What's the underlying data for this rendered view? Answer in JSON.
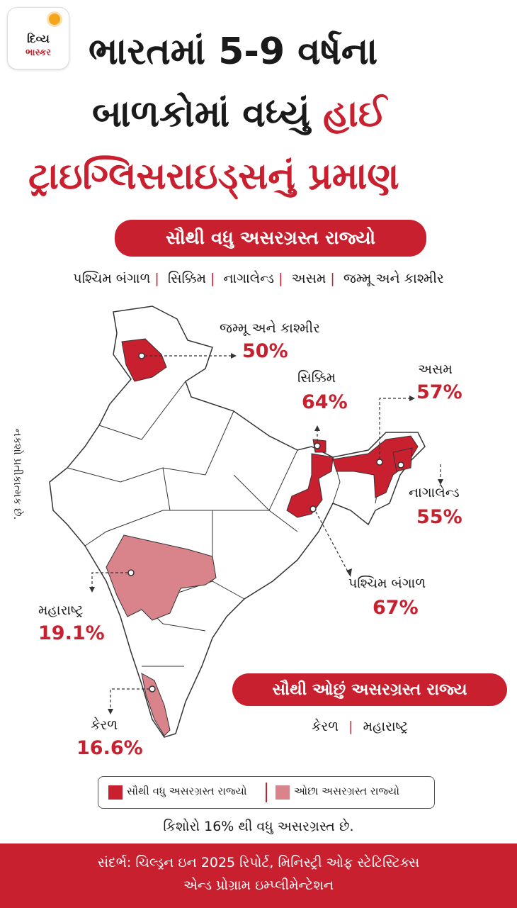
{
  "logo": {
    "line1": "દિવ્ય",
    "line2": "ભાસ્કર"
  },
  "title": {
    "line1": "ભારતમાં 5-9 વર્ષના",
    "line2a": "બાળકોમાં વધ્યું",
    "line2b": "હાઈ",
    "line3": "ટ્રાઇગ્લિસરાઇડ્સનું પ્રમાણ"
  },
  "most_affected": {
    "heading": "સૌથી વધુ અસરગ્રસ્ત રાજ્યો",
    "states": [
      "પશ્ચિમ બંગાળ",
      "સિક્કિમ",
      "નાગાલેન્ડ",
      "અસમ",
      "જમ્મૂ અને કાશ્મીર"
    ]
  },
  "map_labels": {
    "jk": {
      "name": "જમ્મૂ અને કાશ્મીર",
      "value": "50%"
    },
    "sikkim": {
      "name": "સિક્કિમ",
      "value": "64%"
    },
    "assam": {
      "name": "અસમ",
      "value": "57%"
    },
    "nagaland": {
      "name": "નાગાલેન્ડ",
      "value": "55%"
    },
    "wb": {
      "name": "પશ્ચિમ બંગાળ",
      "value": "67%"
    },
    "maharashtra": {
      "name": "મહારાષ્ટ્ર",
      "value": "19.1%"
    },
    "kerala": {
      "name": "કેરળ",
      "value": "16.6%"
    }
  },
  "side_note": "નકશો પ્રતીકાત્મક છે.",
  "least_affected": {
    "heading": "સૌથી ઓછું અસરગ્રસ્ત રાજ્ય",
    "states": [
      "કેરળ",
      "મહારાષ્ટ્ર"
    ]
  },
  "legend": {
    "high": "સૌથી વધુ અસરગ્રસ્ત રાજ્યો",
    "low": "ઓછા અસરગ્રસ્ત રાજ્યો"
  },
  "note": "કિશોરો 16% થી વધુ અસરગ્રસ્ત છે.",
  "footer": {
    "line1": "સંદર્ભ: ચિલ્ડ્રન ઇન 2025 રિપોર્ટ, મિનિસ્ટ્રી ઓફ સ્ટેટિસ્ટિક્સ",
    "line2": "એન્ડ પ્રોગ્રામ ઇમ્પ્લીમેન્ટેશન"
  },
  "colors": {
    "high": "#c8202f",
    "low": "#d9838b"
  }
}
